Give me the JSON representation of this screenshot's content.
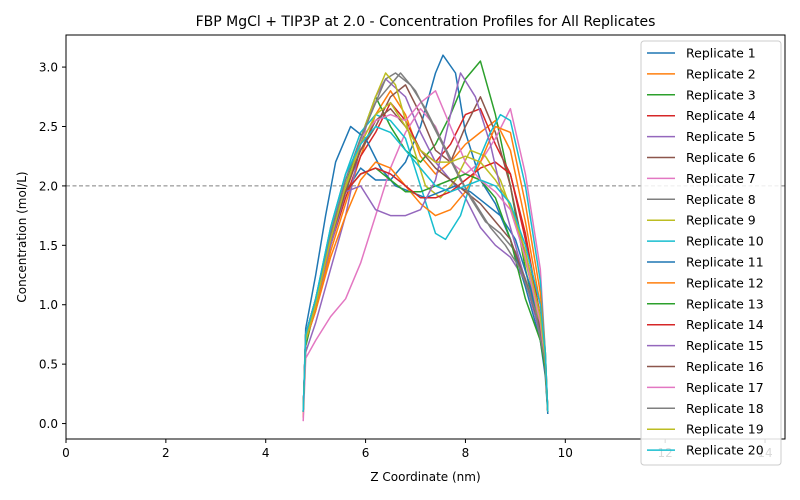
{
  "chart_data": {
    "type": "line",
    "title": "FBP MgCl + TIP3P at 2.0 - Concentration Profiles for All Replicates",
    "xlabel": "Z Coordinate (nm)",
    "ylabel": "Concentration (mol/L)",
    "xlim": [
      0,
      14.4
    ],
    "ylim": [
      -0.13,
      3.27
    ],
    "xticks": [
      0,
      2,
      4,
      6,
      8,
      10,
      12,
      14
    ],
    "yticks": [
      0.0,
      0.5,
      1.0,
      1.5,
      2.0,
      2.5,
      3.0
    ],
    "xtick_labels": [
      "0",
      "2",
      "4",
      "6",
      "8",
      "10",
      "12",
      "14"
    ],
    "ytick_labels": [
      "0.0",
      "0.5",
      "1.0",
      "1.5",
      "2.0",
      "2.5",
      "3.0"
    ],
    "reference_line": {
      "y": 2.0,
      "style": "dashed",
      "color": "#808080"
    },
    "legend_position": "top-right",
    "grid": false,
    "series": [
      {
        "name": "Replicate 1",
        "color": "#1f77b4",
        "x": [
          4.75,
          4.8,
          5.0,
          5.3,
          5.6,
          5.9,
          6.2,
          6.5,
          6.8,
          7.1,
          7.4,
          7.55,
          7.8,
          8.0,
          8.3,
          8.6,
          8.9,
          9.2,
          9.5,
          9.6,
          9.65
        ],
        "y": [
          0.1,
          0.75,
          1.05,
          1.55,
          1.95,
          2.15,
          2.05,
          2.05,
          2.2,
          2.5,
          2.95,
          3.1,
          2.95,
          2.45,
          2.05,
          1.85,
          1.55,
          1.15,
          0.7,
          0.4,
          0.08
        ]
      },
      {
        "name": "Replicate 2",
        "color": "#ff7f0e",
        "x": [
          4.75,
          4.8,
          5.0,
          5.3,
          5.6,
          5.9,
          6.2,
          6.5,
          6.8,
          7.1,
          7.4,
          7.7,
          8.0,
          8.3,
          8.6,
          8.9,
          9.2,
          9.5,
          9.6,
          9.65
        ],
        "y": [
          0.05,
          0.7,
          0.95,
          1.45,
          1.85,
          2.25,
          2.6,
          2.8,
          2.6,
          2.25,
          2.1,
          2.2,
          2.35,
          2.45,
          2.55,
          2.3,
          1.7,
          1.0,
          0.55,
          0.1
        ]
      },
      {
        "name": "Replicate 3",
        "color": "#2ca02c",
        "x": [
          4.75,
          4.8,
          5.0,
          5.3,
          5.6,
          5.9,
          6.2,
          6.5,
          6.8,
          7.1,
          7.4,
          7.7,
          8.0,
          8.3,
          8.6,
          8.9,
          9.2,
          9.5,
          9.6,
          9.65
        ],
        "y": [
          0.1,
          0.65,
          1.0,
          1.6,
          2.0,
          2.4,
          2.75,
          2.5,
          2.3,
          2.2,
          2.35,
          2.6,
          2.9,
          3.05,
          2.6,
          2.0,
          1.3,
          0.75,
          0.45,
          0.1
        ]
      },
      {
        "name": "Replicate 4",
        "color": "#d62728",
        "x": [
          4.75,
          4.8,
          5.0,
          5.3,
          5.6,
          5.9,
          6.2,
          6.5,
          6.8,
          7.1,
          7.4,
          7.7,
          8.0,
          8.3,
          8.6,
          8.9,
          9.2,
          9.5,
          9.6,
          9.65
        ],
        "y": [
          0.1,
          0.7,
          1.0,
          1.5,
          1.9,
          2.25,
          2.45,
          2.7,
          2.55,
          2.3,
          2.2,
          2.35,
          2.6,
          2.65,
          2.35,
          2.1,
          1.55,
          0.9,
          0.5,
          0.1
        ]
      },
      {
        "name": "Replicate 5",
        "color": "#9467bd",
        "x": [
          4.75,
          4.8,
          5.0,
          5.3,
          5.6,
          5.9,
          6.2,
          6.4,
          6.8,
          7.1,
          7.4,
          7.7,
          8.0,
          8.3,
          8.6,
          8.9,
          9.2,
          9.5,
          9.6,
          9.65
        ],
        "y": [
          0.1,
          0.6,
          0.85,
          1.3,
          1.75,
          2.35,
          2.75,
          2.9,
          2.75,
          2.45,
          2.2,
          2.05,
          1.9,
          1.65,
          1.5,
          1.4,
          1.2,
          0.85,
          0.5,
          0.1
        ]
      },
      {
        "name": "Replicate 6",
        "color": "#8c564b",
        "x": [
          4.75,
          4.8,
          5.0,
          5.3,
          5.6,
          5.9,
          6.2,
          6.5,
          6.8,
          7.1,
          7.4,
          7.7,
          8.0,
          8.3,
          8.6,
          8.9,
          9.2,
          9.5,
          9.6,
          9.65
        ],
        "y": [
          0.1,
          0.7,
          1.0,
          1.55,
          2.0,
          2.3,
          2.5,
          2.75,
          2.85,
          2.6,
          2.3,
          2.2,
          2.5,
          2.75,
          2.45,
          2.0,
          1.4,
          0.8,
          0.45,
          0.1
        ]
      },
      {
        "name": "Replicate 7",
        "color": "#e377c2",
        "x": [
          4.75,
          4.8,
          5.0,
          5.3,
          5.6,
          5.9,
          6.2,
          6.5,
          6.8,
          7.1,
          7.4,
          7.7,
          8.0,
          8.3,
          8.6,
          8.9,
          9.2,
          9.5,
          9.6,
          9.65
        ],
        "y": [
          0.02,
          0.55,
          0.7,
          0.9,
          1.05,
          1.35,
          1.75,
          2.15,
          2.45,
          2.65,
          2.5,
          2.2,
          2.1,
          2.2,
          2.4,
          2.65,
          2.1,
          1.3,
          0.6,
          0.1
        ]
      },
      {
        "name": "Replicate 8",
        "color": "#7f7f7f",
        "x": [
          4.75,
          4.8,
          5.0,
          5.3,
          5.6,
          5.9,
          6.2,
          6.4,
          6.6,
          6.9,
          7.2,
          7.5,
          7.8,
          8.1,
          8.4,
          8.7,
          9.0,
          9.3,
          9.6,
          9.65
        ],
        "y": [
          0.1,
          0.75,
          1.05,
          1.6,
          2.05,
          2.4,
          2.7,
          2.9,
          2.95,
          2.85,
          2.65,
          2.4,
          2.15,
          1.9,
          1.7,
          1.6,
          1.45,
          1.1,
          0.55,
          0.1
        ]
      },
      {
        "name": "Replicate 9",
        "color": "#bcbd22",
        "x": [
          4.75,
          4.8,
          5.0,
          5.3,
          5.6,
          5.9,
          6.2,
          6.4,
          6.6,
          6.9,
          7.2,
          7.5,
          7.8,
          8.1,
          8.4,
          8.7,
          9.0,
          9.3,
          9.6,
          9.65
        ],
        "y": [
          0.1,
          0.7,
          1.0,
          1.5,
          1.95,
          2.4,
          2.75,
          2.95,
          2.85,
          2.4,
          2.0,
          1.9,
          2.05,
          2.3,
          2.25,
          2.05,
          1.7,
          1.2,
          0.55,
          0.1
        ]
      },
      {
        "name": "Replicate 10",
        "color": "#17becf",
        "x": [
          4.75,
          4.8,
          5.0,
          5.3,
          5.6,
          5.9,
          6.2,
          6.5,
          6.8,
          7.1,
          7.4,
          7.6,
          7.9,
          8.2,
          8.5,
          8.7,
          8.9,
          9.2,
          9.5,
          9.6,
          9.65
        ],
        "y": [
          0.1,
          0.7,
          1.05,
          1.65,
          2.1,
          2.45,
          2.6,
          2.55,
          2.4,
          2.0,
          1.6,
          1.55,
          1.75,
          2.15,
          2.45,
          2.6,
          2.55,
          2.0,
          1.2,
          0.6,
          0.1
        ]
      },
      {
        "name": "Replicate 11",
        "color": "#1f77b4",
        "x": [
          4.75,
          4.8,
          5.0,
          5.2,
          5.4,
          5.7,
          6.0,
          6.3,
          6.6,
          6.9,
          7.2,
          7.5,
          7.8,
          8.1,
          8.4,
          8.7,
          9.0,
          9.3,
          9.6,
          9.65
        ],
        "y": [
          0.1,
          0.8,
          1.25,
          1.75,
          2.2,
          2.5,
          2.4,
          2.15,
          2.0,
          1.95,
          1.9,
          1.95,
          2.0,
          1.95,
          1.85,
          1.75,
          1.55,
          1.15,
          0.55,
          0.1
        ]
      },
      {
        "name": "Replicate 12",
        "color": "#ff7f0e",
        "x": [
          4.75,
          4.8,
          5.0,
          5.3,
          5.6,
          5.9,
          6.2,
          6.5,
          6.8,
          7.1,
          7.4,
          7.7,
          8.0,
          8.3,
          8.6,
          8.9,
          9.2,
          9.5,
          9.6,
          9.65
        ],
        "y": [
          0.1,
          0.7,
          0.95,
          1.4,
          1.75,
          2.05,
          2.2,
          2.15,
          2.0,
          1.85,
          1.75,
          1.8,
          1.95,
          2.2,
          2.5,
          2.45,
          1.85,
          1.1,
          0.6,
          0.1
        ]
      },
      {
        "name": "Replicate 13",
        "color": "#2ca02c",
        "x": [
          4.75,
          4.8,
          5.0,
          5.3,
          5.6,
          5.9,
          6.2,
          6.5,
          6.8,
          7.1,
          7.4,
          7.7,
          8.0,
          8.3,
          8.6,
          8.9,
          9.2,
          9.5,
          9.6,
          9.65
        ],
        "y": [
          0.1,
          0.75,
          1.05,
          1.55,
          1.95,
          2.1,
          2.15,
          2.05,
          1.95,
          1.95,
          2.0,
          2.05,
          2.1,
          2.05,
          1.9,
          1.55,
          1.05,
          0.7,
          0.45,
          0.1
        ]
      },
      {
        "name": "Replicate 14",
        "color": "#d62728",
        "x": [
          4.75,
          4.8,
          5.0,
          5.3,
          5.6,
          5.9,
          6.2,
          6.5,
          6.8,
          7.1,
          7.4,
          7.7,
          8.0,
          8.3,
          8.6,
          8.9,
          9.2,
          9.5,
          9.6,
          9.65
        ],
        "y": [
          0.1,
          0.75,
          1.05,
          1.6,
          1.95,
          2.1,
          2.15,
          2.1,
          2.0,
          1.9,
          1.9,
          1.95,
          2.05,
          2.15,
          2.2,
          2.1,
          1.6,
          0.9,
          0.5,
          0.1
        ]
      },
      {
        "name": "Replicate 15",
        "color": "#9467bd",
        "x": [
          4.75,
          4.8,
          5.0,
          5.3,
          5.6,
          5.9,
          6.2,
          6.5,
          6.8,
          7.1,
          7.4,
          7.7,
          7.9,
          8.2,
          8.5,
          8.8,
          9.1,
          9.4,
          9.6,
          9.65
        ],
        "y": [
          0.1,
          0.7,
          1.0,
          1.5,
          1.95,
          2.0,
          1.8,
          1.75,
          1.75,
          1.8,
          2.05,
          2.6,
          2.95,
          2.75,
          2.35,
          1.8,
          1.35,
          0.9,
          0.55,
          0.1
        ]
      },
      {
        "name": "Replicate 16",
        "color": "#8c564b",
        "x": [
          4.75,
          4.8,
          5.0,
          5.3,
          5.6,
          5.9,
          6.2,
          6.5,
          6.8,
          7.1,
          7.4,
          7.7,
          8.0,
          8.3,
          8.6,
          8.9,
          9.2,
          9.5,
          9.6,
          9.65
        ],
        "y": [
          0.1,
          0.75,
          1.0,
          1.55,
          1.95,
          2.3,
          2.55,
          2.65,
          2.5,
          2.3,
          2.15,
          2.05,
          1.95,
          1.85,
          1.7,
          1.55,
          1.2,
          0.8,
          0.5,
          0.1
        ]
      },
      {
        "name": "Replicate 17",
        "color": "#e377c2",
        "x": [
          4.75,
          4.8,
          5.0,
          5.3,
          5.6,
          5.9,
          6.2,
          6.5,
          6.8,
          7.1,
          7.4,
          7.7,
          8.0,
          8.3,
          8.6,
          8.9,
          9.2,
          9.5,
          9.6,
          9.65
        ],
        "y": [
          0.1,
          0.75,
          1.05,
          1.6,
          2.05,
          2.4,
          2.55,
          2.6,
          2.55,
          2.7,
          2.8,
          2.5,
          2.2,
          2.05,
          1.95,
          1.8,
          1.4,
          0.85,
          0.5,
          0.1
        ]
      },
      {
        "name": "Replicate 18",
        "color": "#7f7f7f",
        "x": [
          4.75,
          4.8,
          5.0,
          5.3,
          5.6,
          5.9,
          6.2,
          6.5,
          6.7,
          7.0,
          7.3,
          7.6,
          7.9,
          8.2,
          8.5,
          8.8,
          9.1,
          9.4,
          9.6,
          9.65
        ],
        "y": [
          0.1,
          0.75,
          1.05,
          1.6,
          2.05,
          2.4,
          2.7,
          2.85,
          2.95,
          2.8,
          2.55,
          2.3,
          2.05,
          1.85,
          1.65,
          1.5,
          1.3,
          0.95,
          0.5,
          0.1
        ]
      },
      {
        "name": "Replicate 19",
        "color": "#bcbd22",
        "x": [
          4.75,
          4.8,
          5.0,
          5.3,
          5.6,
          5.9,
          6.2,
          6.5,
          6.8,
          7.1,
          7.4,
          7.7,
          8.0,
          8.3,
          8.6,
          8.9,
          9.2,
          9.5,
          9.6,
          9.65
        ],
        "y": [
          0.1,
          0.7,
          1.0,
          1.55,
          2.0,
          2.35,
          2.6,
          2.7,
          2.5,
          2.3,
          2.2,
          2.2,
          2.25,
          2.2,
          2.05,
          1.85,
          1.45,
          0.9,
          0.55,
          0.1
        ]
      },
      {
        "name": "Replicate 20",
        "color": "#17becf",
        "x": [
          4.75,
          4.8,
          5.0,
          5.3,
          5.6,
          5.9,
          6.2,
          6.5,
          6.8,
          7.1,
          7.4,
          7.7,
          8.0,
          8.3,
          8.6,
          8.9,
          9.2,
          9.5,
          9.6,
          9.65
        ],
        "y": [
          0.1,
          0.75,
          1.05,
          1.65,
          2.1,
          2.35,
          2.5,
          2.45,
          2.3,
          2.15,
          2.0,
          1.95,
          2.0,
          2.05,
          2.0,
          1.85,
          1.5,
          1.0,
          0.6,
          0.1
        ]
      }
    ]
  }
}
